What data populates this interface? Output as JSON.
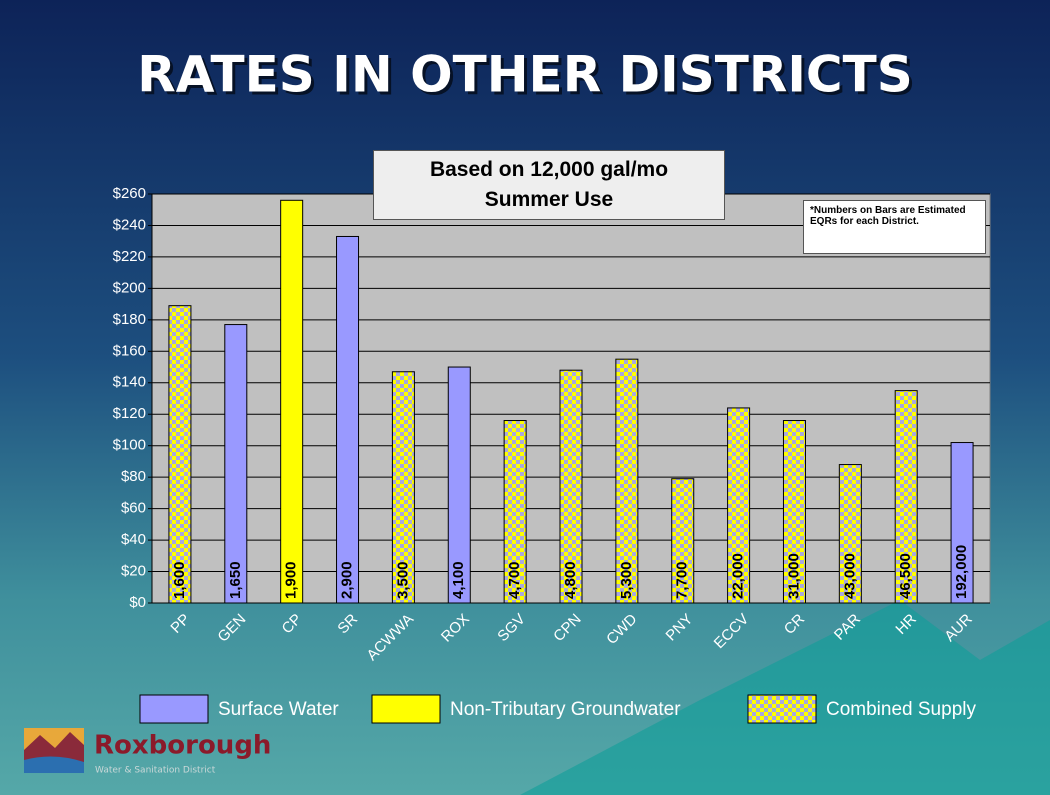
{
  "slide_title": "RATES IN OTHER DISTRICTS",
  "chart_data": {
    "type": "bar",
    "title": "Based on 12,000 gal/mo",
    "subtitle": "Summer Use",
    "note": "*Numbers on Bars are Estimated EQRs for each District.",
    "categories": [
      "PP",
      "GEN",
      "CP",
      "SR",
      "ACWWA",
      "ROX",
      "SGV",
      "CPN",
      "CWD",
      "PNY",
      "ECCV",
      "CR",
      "PAR",
      "HR",
      "AUR"
    ],
    "series": [
      {
        "name": "Surface Water",
        "color": "#9999ff",
        "pattern": false,
        "values": [
          null,
          177,
          null,
          233,
          null,
          150,
          null,
          null,
          null,
          null,
          null,
          null,
          null,
          null,
          102
        ]
      },
      {
        "name": "Non-Tributary Groundwater",
        "color": "#ffff00",
        "pattern": false,
        "values": [
          null,
          null,
          256,
          null,
          null,
          null,
          null,
          null,
          null,
          null,
          null,
          null,
          null,
          null,
          null
        ]
      },
      {
        "name": "Combined Supply",
        "color": "#ffff00",
        "pattern": true,
        "values": [
          189,
          null,
          null,
          null,
          147,
          null,
          116,
          148,
          155,
          79,
          124,
          116,
          88,
          135,
          null
        ]
      }
    ],
    "eqr_labels": [
      "1,600",
      "1,650",
      "1,900",
      "2,900",
      "3,500",
      "4,100",
      "4,700",
      "4,800",
      "5,300",
      "7,700",
      "22,000",
      "31,000",
      "43,000",
      "46,500",
      "192,000"
    ],
    "ylim": [
      0,
      260
    ],
    "yticks": [
      {
        "value": 0,
        "label": "$0"
      },
      {
        "value": 20,
        "label": "$20"
      },
      {
        "value": 40,
        "label": "$40"
      },
      {
        "value": 60,
        "label": "$60"
      },
      {
        "value": 80,
        "label": "$80"
      },
      {
        "value": 100,
        "label": "$100"
      },
      {
        "value": 120,
        "label": "$120"
      },
      {
        "value": 140,
        "label": "$140"
      },
      {
        "value": 160,
        "label": "$160"
      },
      {
        "value": 180,
        "label": "$180"
      },
      {
        "value": 200,
        "label": "$200"
      },
      {
        "value": 220,
        "label": "$220"
      },
      {
        "value": 240,
        "label": "$240"
      },
      {
        "value": 260,
        "label": "$260"
      }
    ],
    "grid": true
  },
  "logo": {
    "name": "Roxborough",
    "tagline": "Water & Sanitation District"
  }
}
